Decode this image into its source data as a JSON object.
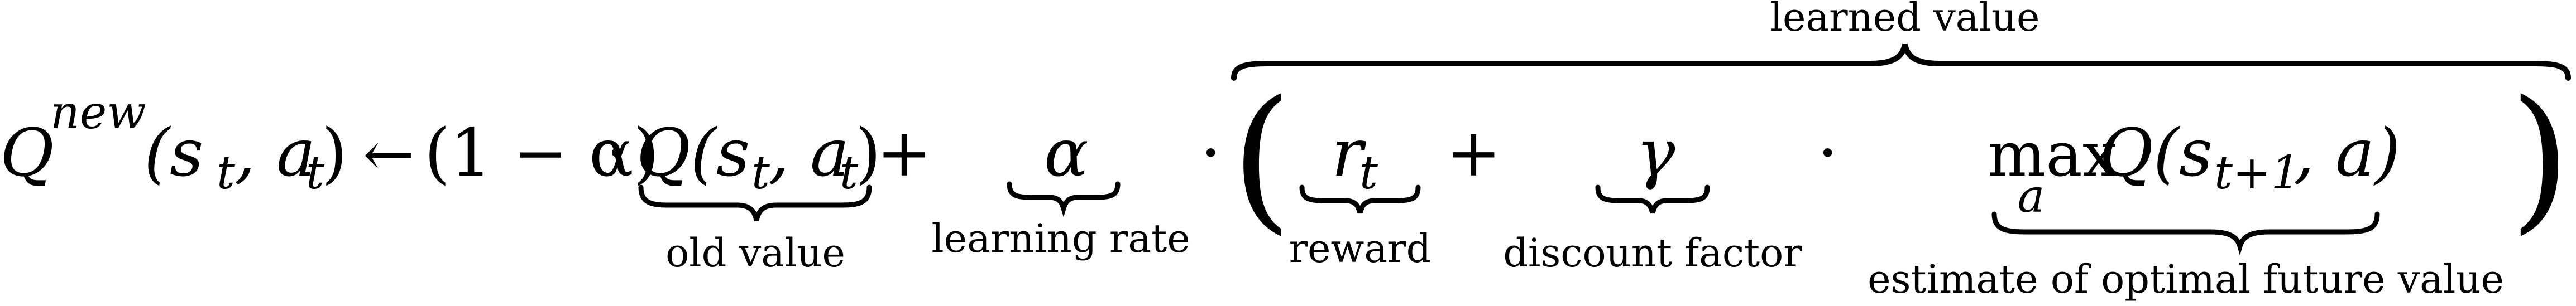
{
  "equation": {
    "lhs": {
      "Q": "Q",
      "new_sup": "new",
      "args": "(s",
      "t1": "t",
      "comma_a": ", a",
      "t2": "t",
      "close": ")"
    },
    "arrow": "←",
    "one_minus_alpha": "(1 − α)",
    "cdot1": "·",
    "old_q": {
      "Q": "Q(s",
      "t1": "t",
      "comma_a": ", a",
      "t2": "t",
      "close": ")"
    },
    "plus1": "+",
    "alpha": "α",
    "cdot2": "·",
    "big_open": "(",
    "r": "r",
    "r_sub": "t",
    "plus2": "+",
    "gamma": "γ",
    "cdot3": "·",
    "max": "max",
    "max_sub": "a",
    "future_q": {
      "Q": "Q(s",
      "sub": "t+1",
      "rest": ", a)"
    },
    "big_close": ")"
  },
  "annotations": {
    "old_value": "old value",
    "learning_rate": "learning rate",
    "reward": "reward",
    "discount_factor": "discount factor",
    "estimate": "estimate of optimal future value",
    "learned_value": "learned value"
  }
}
